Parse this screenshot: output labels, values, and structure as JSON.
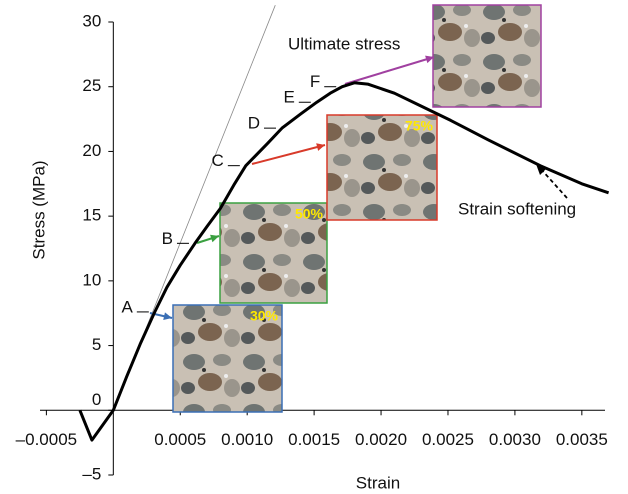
{
  "chart_data": {
    "type": "line",
    "x_label": "Strain",
    "y_label": "Stress (MPa)",
    "xlim": [
      -0.0006,
      0.0038
    ],
    "ylim": [
      -5,
      30
    ],
    "xticks": [
      {
        "value": -0.0005,
        "label": "–0.0005"
      },
      0.0005,
      {
        "value": 0.001,
        "label": "0.0010"
      },
      0.0015,
      {
        "value": 0.002,
        "label": "0.0020"
      },
      0.0025,
      {
        "value": 0.003,
        "label": "0.0030"
      },
      0.0035
    ],
    "yticks": [
      {
        "value": -5,
        "label": "–5"
      },
      0,
      5,
      10,
      15,
      20,
      25,
      30
    ],
    "series": [
      {
        "color": "#000000",
        "x": [
          -0.00025,
          -0.00016,
          0,
          0.0001,
          0.0002,
          0.00031,
          0.0004,
          0.0005,
          0.00061,
          0.0007,
          0.0008,
          0.0009,
          0.00099,
          0.00115,
          0.00126,
          0.0014,
          0.00152,
          0.00162,
          0.00171,
          0.0018,
          0.0019,
          0.0021,
          0.0023,
          0.00252,
          0.0028,
          0.00319,
          0.0035,
          0.0037
        ],
        "values": [
          0,
          -2.3,
          0,
          2.6,
          5.1,
          7.6,
          9.5,
          11.2,
          12.9,
          14.2,
          15.6,
          17.4,
          18.9,
          20.6,
          21.8,
          22.9,
          23.8,
          24.5,
          25.0,
          25.3,
          25.2,
          24.5,
          23.5,
          22.4,
          20.9,
          18.9,
          17.5,
          16.8
        ]
      }
    ],
    "tangent": {
      "color": "#888888",
      "x": [
        0,
        0.00121
      ],
      "values": [
        0,
        31.3
      ]
    },
    "points": [
      {
        "label": "A",
        "x": 0.00031,
        "y": 7.6
      },
      {
        "label": "B",
        "x": 0.00061,
        "y": 12.9
      },
      {
        "label": "C",
        "x": 0.00099,
        "y": 18.9
      },
      {
        "label": "D",
        "x": 0.00126,
        "y": 21.8
      },
      {
        "label": "E",
        "x": 0.00152,
        "y": 23.8
      },
      {
        "label": "F",
        "x": 0.00171,
        "y": 25.0
      }
    ],
    "insets": [
      {
        "label": "30%",
        "color": "#3a6fb5"
      },
      {
        "label": "50%",
        "color": "#3aa040"
      },
      {
        "label": "75%",
        "color": "#d83a2a"
      },
      {
        "label": null,
        "color": "#a040a0"
      }
    ],
    "annotations": [
      {
        "text": "Ultimate stress",
        "color": "#9b2a9b"
      },
      {
        "text": "Strain softening"
      }
    ]
  }
}
